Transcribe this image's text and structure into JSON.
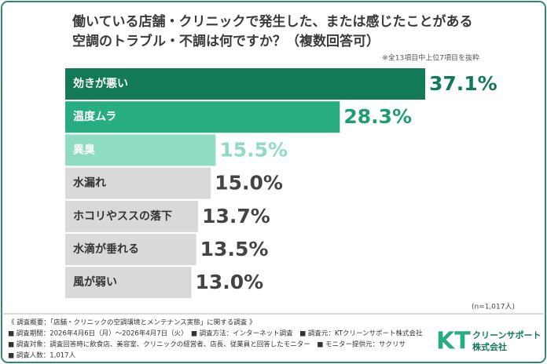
{
  "chart_data": {
    "type": "bar",
    "orientation": "horizontal",
    "title": [
      "働いている店舗・クリニックで発生した、または感じたことがある",
      "空調のトラブル・不調は何ですか？（複数回答可）"
    ],
    "note": "※全13項目中上位7項目を抜粋",
    "sample_size": "(n=1,017人)",
    "categories": [
      "効きが悪い",
      "温度ムラ",
      "異臭",
      "水漏れ",
      "ホコリやススの落下",
      "水滴が垂れる",
      "風が弱い"
    ],
    "values": [
      37.1,
      28.3,
      15.5,
      15.0,
      13.7,
      13.5,
      13.0
    ],
    "value_labels": [
      "37.1%",
      "28.3%",
      "15.5%",
      "15.0%",
      "13.7%",
      "13.5%",
      "13.0%"
    ],
    "colors": [
      "#137a56",
      "#27ad7f",
      "#8fdcc2",
      "#d9d9d9",
      "#d9d9d9",
      "#d9d9d9",
      "#d9d9d9"
    ],
    "label_colors": [
      "#ffffff",
      "#ffffff",
      "#ffffff",
      "#333333",
      "#333333",
      "#333333",
      "#333333"
    ],
    "value_label_colors": [
      "#137a56",
      "#1f9e70",
      "#8fdcc2",
      "#444444",
      "#444444",
      "#444444",
      "#444444"
    ]
  },
  "footer": {
    "lines": [
      "《 調査概要：「店舗・クリニックの空調環境とメンテナンス実態」に関する調査 》",
      "■ 調査期間：2026年4月6日（月）～2026年4月7日（火）　■ 調査方法：インターネット調査　■ 調査元：KTクリーンサポート株式会社",
      "■ 調査対象：調査回答時に飲食店、美容室、クリニックの経営者、店長、従業員と回答したモニター　■ モニター提供元：サクリサ",
      "■ 調査人数：1,017人"
    ],
    "logo": {
      "mark": "KT",
      "line1": "クリーンサポート",
      "line2": "株式会社"
    }
  }
}
